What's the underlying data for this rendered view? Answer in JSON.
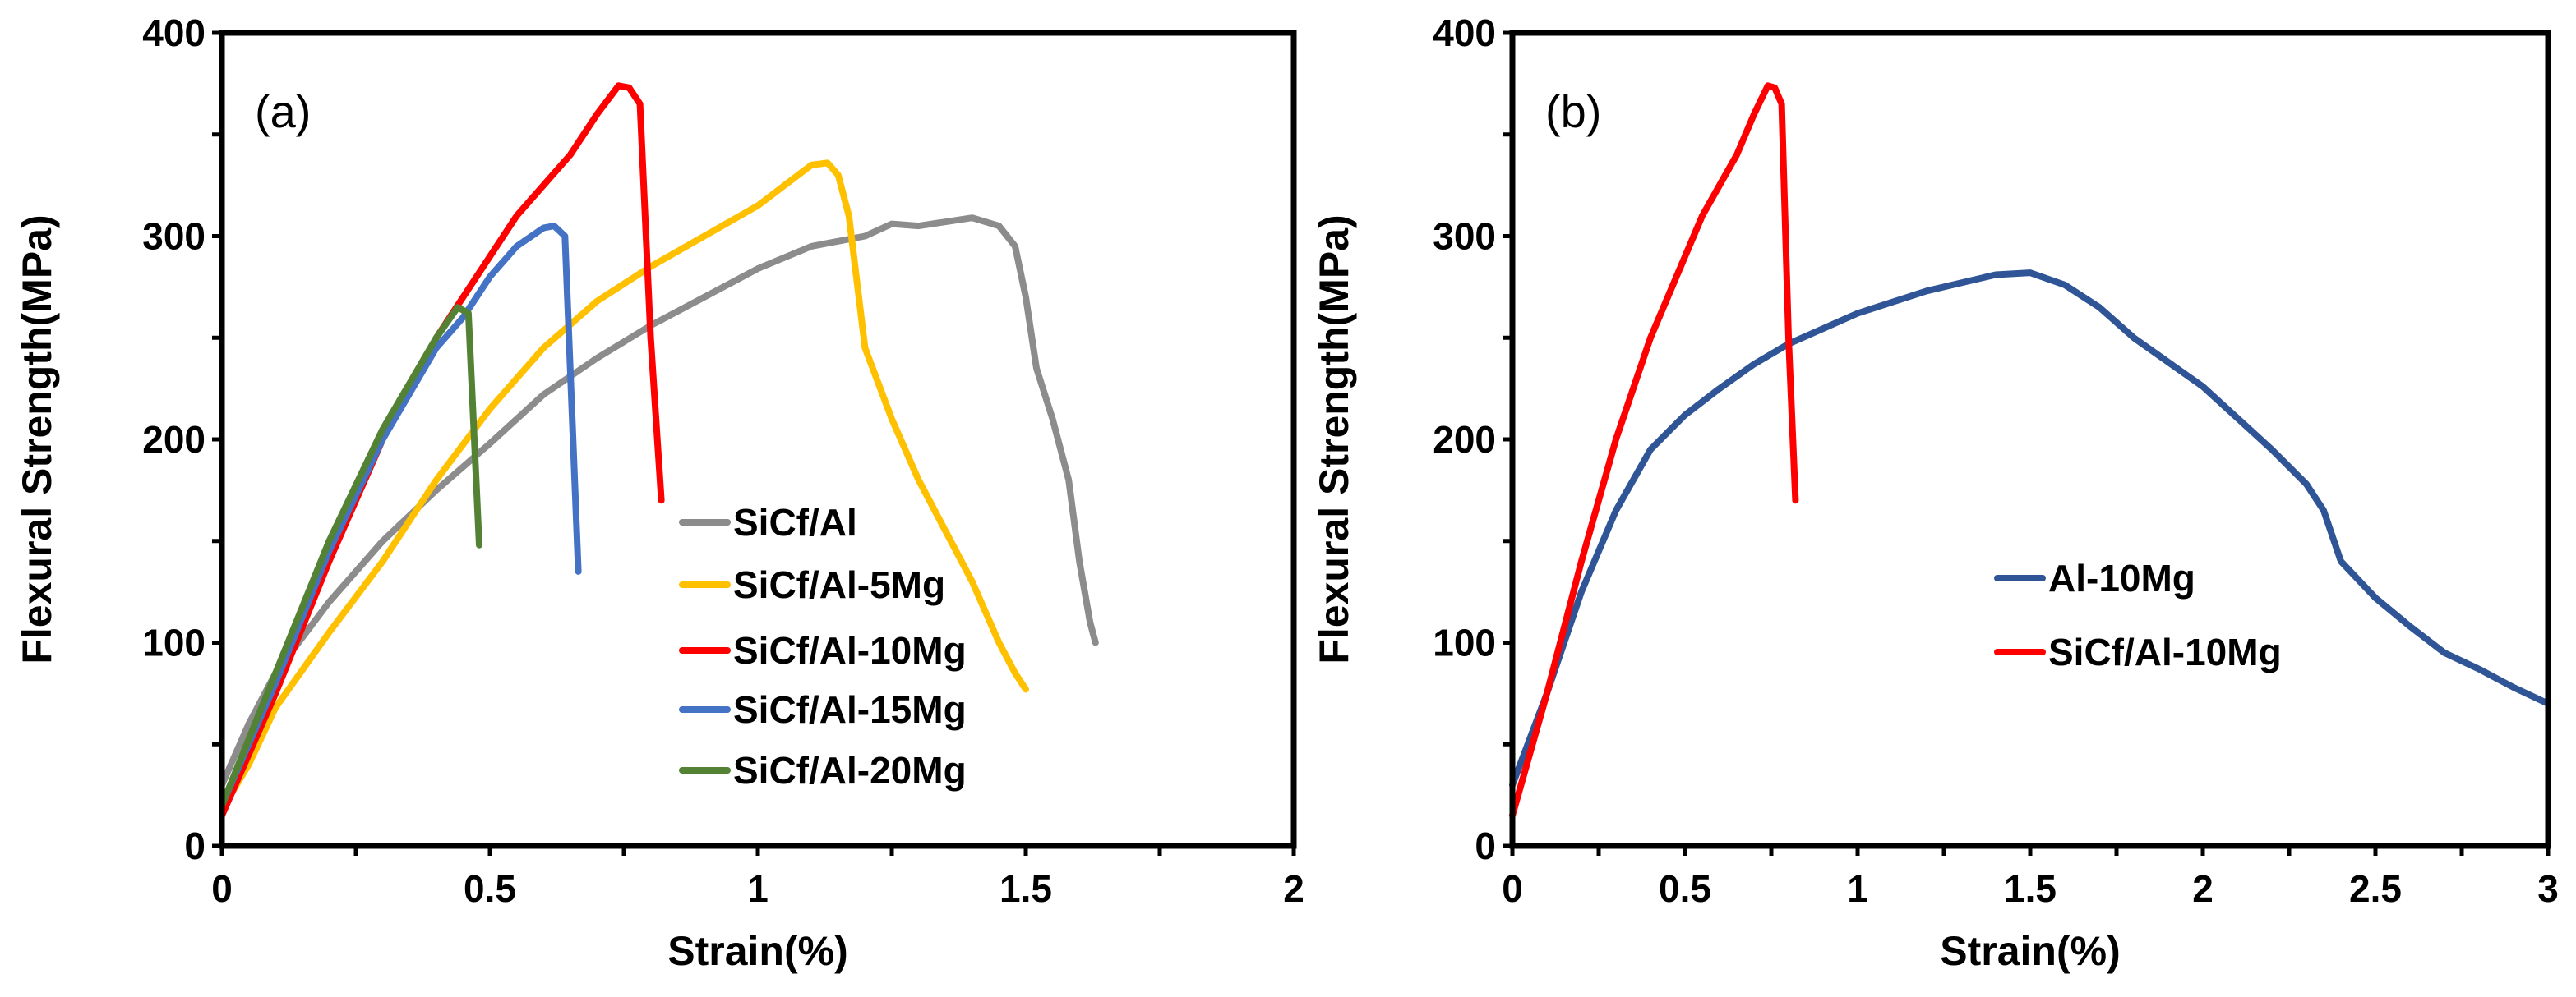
{
  "chart_data": [
    {
      "type": "line",
      "panel_label": "(a)",
      "xlabel": "Strain(%)",
      "ylabel": "Flexural Strength(MPa)",
      "xlim": [
        0,
        2
      ],
      "ylim": [
        0,
        400
      ],
      "xticks": [
        "0",
        "0.5",
        "1",
        "1.5",
        "2"
      ],
      "yticks": [
        "0",
        "100",
        "200",
        "300",
        "400"
      ],
      "legend_position": "center-right",
      "series": [
        {
          "name": "SiCf/Al",
          "color": "#8c8c8c",
          "points": [
            [
              0,
              30
            ],
            [
              0.05,
              60
            ],
            [
              0.1,
              85
            ],
            [
              0.2,
              120
            ],
            [
              0.3,
              150
            ],
            [
              0.4,
              175
            ],
            [
              0.5,
              198
            ],
            [
              0.6,
              222
            ],
            [
              0.7,
              240
            ],
            [
              0.8,
              256
            ],
            [
              0.9,
              270
            ],
            [
              1.0,
              284
            ],
            [
              1.1,
              295
            ],
            [
              1.2,
              300
            ],
            [
              1.25,
              306
            ],
            [
              1.3,
              305
            ],
            [
              1.4,
              309
            ],
            [
              1.45,
              305
            ],
            [
              1.48,
              295
            ],
            [
              1.5,
              270
            ],
            [
              1.52,
              235
            ],
            [
              1.55,
              210
            ],
            [
              1.58,
              180
            ],
            [
              1.6,
              140
            ],
            [
              1.62,
              110
            ],
            [
              1.63,
              100
            ]
          ]
        },
        {
          "name": "SiCf/Al-5Mg",
          "color": "#ffc000",
          "points": [
            [
              0,
              18
            ],
            [
              0.05,
              40
            ],
            [
              0.1,
              68
            ],
            [
              0.2,
              105
            ],
            [
              0.3,
              140
            ],
            [
              0.4,
              180
            ],
            [
              0.5,
              215
            ],
            [
              0.6,
              245
            ],
            [
              0.7,
              268
            ],
            [
              0.8,
              285
            ],
            [
              0.9,
              300
            ],
            [
              1.0,
              315
            ],
            [
              1.05,
              325
            ],
            [
              1.1,
              335
            ],
            [
              1.13,
              336
            ],
            [
              1.15,
              330
            ],
            [
              1.17,
              310
            ],
            [
              1.2,
              245
            ],
            [
              1.25,
              210
            ],
            [
              1.3,
              180
            ],
            [
              1.35,
              155
            ],
            [
              1.4,
              130
            ],
            [
              1.45,
              100
            ],
            [
              1.48,
              85
            ],
            [
              1.5,
              77
            ]
          ]
        },
        {
          "name": "SiCf/Al-10Mg",
          "color": "#ff0000",
          "points": [
            [
              0,
              15
            ],
            [
              0.1,
              75
            ],
            [
              0.2,
              140
            ],
            [
              0.3,
              200
            ],
            [
              0.4,
              250
            ],
            [
              0.45,
              270
            ],
            [
              0.5,
              290
            ],
            [
              0.55,
              310
            ],
            [
              0.6,
              325
            ],
            [
              0.65,
              340
            ],
            [
              0.7,
              360
            ],
            [
              0.74,
              374
            ],
            [
              0.76,
              373
            ],
            [
              0.78,
              365
            ],
            [
              0.8,
              250
            ],
            [
              0.82,
              170
            ]
          ]
        },
        {
          "name": "SiCf/Al-15Mg",
          "color": "#4472c4",
          "points": [
            [
              0,
              20
            ],
            [
              0.1,
              80
            ],
            [
              0.2,
              145
            ],
            [
              0.3,
              200
            ],
            [
              0.4,
              245
            ],
            [
              0.45,
              260
            ],
            [
              0.5,
              280
            ],
            [
              0.55,
              295
            ],
            [
              0.6,
              304
            ],
            [
              0.62,
              305
            ],
            [
              0.64,
              300
            ],
            [
              0.665,
              135
            ]
          ]
        },
        {
          "name": "SiCf/Al-20Mg",
          "color": "#548235",
          "points": [
            [
              0,
              20
            ],
            [
              0.1,
              85
            ],
            [
              0.2,
              150
            ],
            [
              0.3,
              205
            ],
            [
              0.4,
              250
            ],
            [
              0.44,
              265
            ],
            [
              0.46,
              262
            ],
            [
              0.48,
              148
            ]
          ]
        }
      ]
    },
    {
      "type": "line",
      "panel_label": "(b)",
      "xlabel": "Strain(%)",
      "ylabel": "Flexural Strength(MPa)",
      "xlim": [
        0,
        3
      ],
      "ylim": [
        0,
        400
      ],
      "xticks": [
        "0",
        "0.5",
        "1",
        "1.5",
        "2",
        "2.5",
        "3"
      ],
      "yticks": [
        "0",
        "100",
        "200",
        "300",
        "400"
      ],
      "legend_position": "center-right",
      "series": [
        {
          "name": "Al-10Mg",
          "color": "#2f5597",
          "points": [
            [
              0,
              30
            ],
            [
              0.1,
              75
            ],
            [
              0.2,
              125
            ],
            [
              0.3,
              165
            ],
            [
              0.4,
              195
            ],
            [
              0.5,
              212
            ],
            [
              0.6,
              225
            ],
            [
              0.7,
              237
            ],
            [
              0.8,
              247
            ],
            [
              1.0,
              262
            ],
            [
              1.2,
              273
            ],
            [
              1.4,
              281
            ],
            [
              1.5,
              282
            ],
            [
              1.6,
              276
            ],
            [
              1.7,
              265
            ],
            [
              1.8,
              250
            ],
            [
              2.0,
              226
            ],
            [
              2.2,
              195
            ],
            [
              2.3,
              178
            ],
            [
              2.35,
              165
            ],
            [
              2.4,
              140
            ],
            [
              2.5,
              122
            ],
            [
              2.6,
              108
            ],
            [
              2.7,
              95
            ],
            [
              2.8,
              87
            ],
            [
              2.9,
              78
            ],
            [
              3.0,
              70
            ]
          ]
        },
        {
          "name": "SiCf/Al-10Mg",
          "color": "#ff0000",
          "points": [
            [
              0,
              15
            ],
            [
              0.1,
              75
            ],
            [
              0.2,
              140
            ],
            [
              0.3,
              200
            ],
            [
              0.4,
              250
            ],
            [
              0.45,
              270
            ],
            [
              0.5,
              290
            ],
            [
              0.55,
              310
            ],
            [
              0.6,
              325
            ],
            [
              0.65,
              340
            ],
            [
              0.7,
              360
            ],
            [
              0.74,
              374
            ],
            [
              0.76,
              373
            ],
            [
              0.78,
              365
            ],
            [
              0.8,
              250
            ],
            [
              0.82,
              170
            ]
          ]
        }
      ]
    }
  ]
}
